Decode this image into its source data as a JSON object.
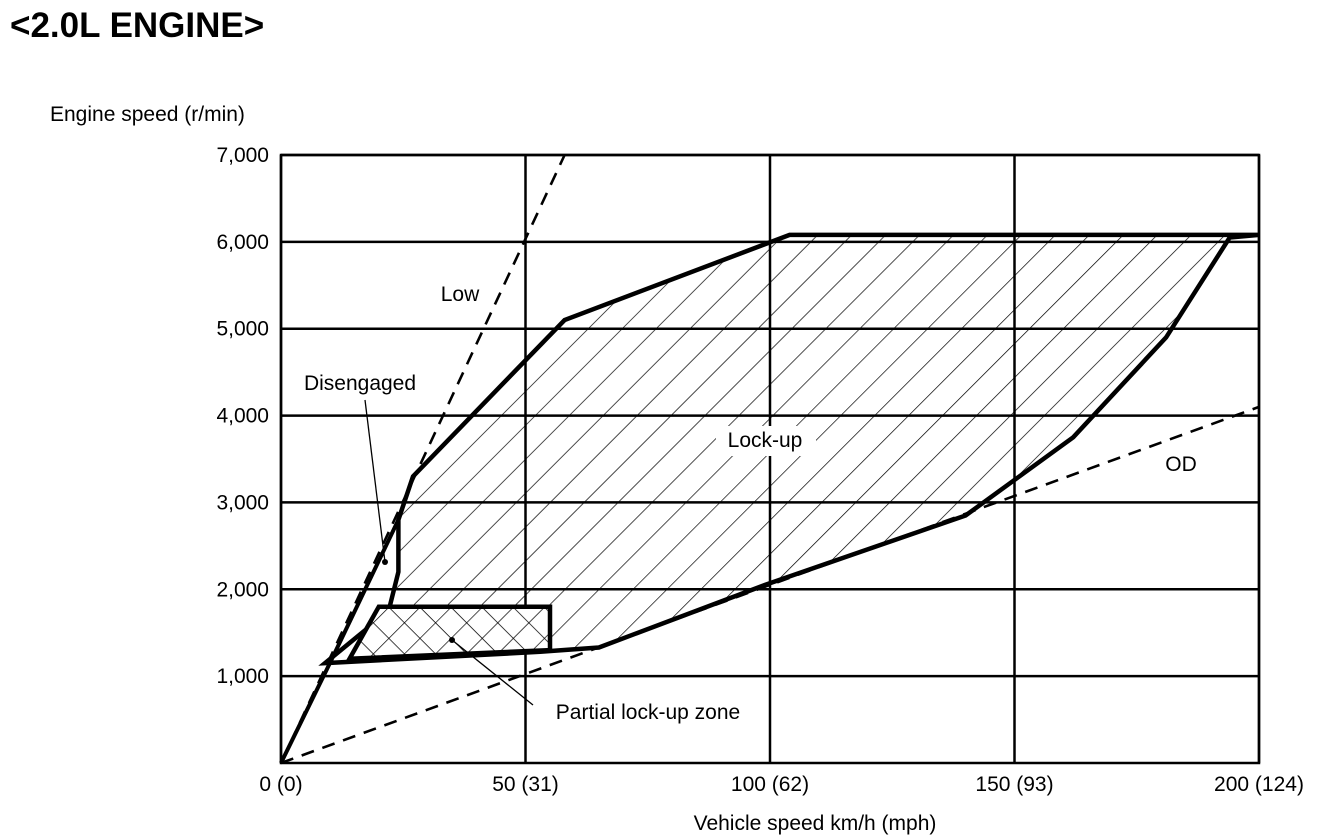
{
  "title": "<2.0L ENGINE>",
  "chart_data": {
    "type": "line",
    "ylabel": "Engine speed (r/min)",
    "xlabel": "Vehicle speed  km/h (mph)",
    "xlim": [
      0,
      200
    ],
    "ylim": [
      0,
      7000
    ],
    "x_ticks": [
      {
        "value": 0,
        "label": "0 (0)"
      },
      {
        "value": 50,
        "label": "50 (31)"
      },
      {
        "value": 100,
        "label": "100 (62)"
      },
      {
        "value": 150,
        "label": "150 (93)"
      },
      {
        "value": 200,
        "label": "200 (124)"
      }
    ],
    "y_ticks": [
      {
        "value": 1000,
        "label": "1,000"
      },
      {
        "value": 2000,
        "label": "2,000"
      },
      {
        "value": 3000,
        "label": "3,000"
      },
      {
        "value": 4000,
        "label": "4,000"
      },
      {
        "value": 5000,
        "label": "5,000"
      },
      {
        "value": 6000,
        "label": "6,000"
      },
      {
        "value": 7000,
        "label": "7,000"
      }
    ],
    "grid": true,
    "gear_lines": [
      {
        "name": "Low",
        "points": [
          [
            0,
            0
          ],
          [
            58,
            7000
          ]
        ]
      },
      {
        "name": "OD",
        "points": [
          [
            0,
            0
          ],
          [
            200,
            4100
          ]
        ]
      }
    ],
    "lockup_region": {
      "label": "Lock-up",
      "points": [
        [
          27,
          3300
        ],
        [
          58,
          5100
        ],
        [
          104,
          6080
        ],
        [
          200,
          6080
        ],
        [
          194,
          6050
        ],
        [
          181,
          4900
        ],
        [
          162,
          3750
        ],
        [
          140,
          2850
        ],
        [
          99,
          2050
        ],
        [
          65,
          1330
        ],
        [
          53,
          1280
        ],
        [
          9,
          1150
        ],
        [
          22,
          1750
        ],
        [
          24,
          2200
        ],
        [
          24,
          2800
        ]
      ]
    },
    "partial_lockup_zone": {
      "label": "Partial lock-up zone",
      "points": [
        [
          20,
          1800
        ],
        [
          55,
          1800
        ],
        [
          55,
          1300
        ],
        [
          14,
          1200
        ]
      ]
    },
    "disengaged_boundary": {
      "label": "Disengaged",
      "points": [
        [
          10,
          1150
        ],
        [
          24,
          2800
        ]
      ]
    },
    "annotations": [
      "Low",
      "OD",
      "Lock-up",
      "Disengaged",
      "Partial lock-up zone"
    ]
  }
}
